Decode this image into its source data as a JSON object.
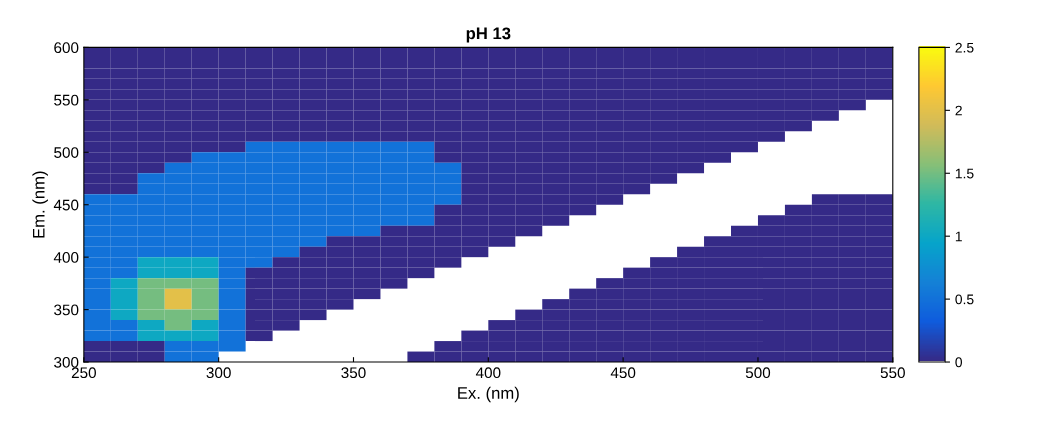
{
  "chart_data": {
    "type": "heatmap",
    "title": "pH 13",
    "xlabel": "Ex. (nm)",
    "ylabel": "Em. (nm)",
    "x": [
      255,
      265,
      275,
      285,
      295,
      305,
      315,
      325,
      335,
      345,
      355,
      365,
      375,
      385,
      395,
      405,
      415,
      425,
      435,
      445,
      455,
      465,
      475,
      485,
      495,
      505,
      515,
      525,
      535,
      545
    ],
    "y": [
      595,
      585,
      575,
      565,
      555,
      545,
      535,
      525,
      515,
      505,
      495,
      485,
      475,
      465,
      455,
      445,
      435,
      425,
      415,
      405,
      395,
      385,
      375,
      365,
      355,
      345,
      335,
      325,
      315,
      305
    ],
    "xlim": [
      250,
      550
    ],
    "xticks": [
      250,
      300,
      350,
      400,
      450,
      500,
      550
    ],
    "ylim": [
      300,
      600
    ],
    "yticks": [
      300,
      350,
      400,
      450,
      500,
      550,
      600
    ],
    "clim": [
      0,
      2.5
    ],
    "cticks": [
      0,
      0.5,
      1,
      1.5,
      2,
      2.5
    ],
    "grid": false,
    "cells": [
      [
        0,
        0,
        0,
        0,
        0,
        0,
        0,
        0,
        0,
        0,
        0,
        0,
        0,
        0,
        0,
        0,
        0,
        0,
        0,
        0,
        0,
        0,
        0,
        0,
        0,
        0,
        0,
        0,
        0,
        0
      ],
      [
        0,
        0,
        0,
        0,
        0,
        0,
        0,
        0,
        0,
        0,
        0,
        0,
        0,
        0,
        0,
        0,
        0,
        0,
        0,
        0,
        0,
        0,
        0,
        0,
        0,
        0,
        0,
        0,
        0,
        0
      ],
      [
        0,
        0,
        0,
        0,
        0,
        0,
        0,
        0,
        0,
        0,
        0,
        0,
        0,
        0,
        0,
        0,
        0,
        0,
        0,
        0,
        0,
        0,
        0,
        0,
        0,
        0,
        0,
        0,
        0,
        0
      ],
      [
        0,
        0,
        0,
        0,
        0,
        0,
        0,
        0,
        0,
        0,
        0,
        0,
        0,
        0,
        0,
        0,
        0,
        0,
        0,
        0,
        0,
        0,
        0,
        0,
        0,
        0,
        0,
        0,
        0,
        0
      ],
      [
        0,
        0,
        0,
        0,
        0,
        0,
        0,
        0,
        0,
        0,
        0,
        0,
        0,
        0,
        0,
        0,
        0,
        0,
        0,
        0,
        0,
        0,
        0,
        0,
        0,
        0,
        0,
        0,
        0,
        0
      ],
      [
        0,
        0,
        0,
        0,
        0,
        0,
        0,
        0,
        0,
        0,
        0,
        0,
        0,
        0,
        0,
        0,
        0,
        0,
        0,
        0,
        0,
        0,
        0,
        0,
        0,
        0,
        0,
        0,
        0,
        null
      ],
      [
        0,
        0,
        0,
        0,
        0,
        0,
        0,
        0,
        0,
        0,
        0,
        0,
        0,
        0,
        0,
        0,
        0,
        0,
        0,
        0,
        0,
        0,
        0,
        0,
        0,
        0,
        0,
        0,
        null,
        null
      ],
      [
        0,
        0,
        0,
        0,
        0,
        0,
        0,
        0,
        0,
        0,
        0,
        0,
        0,
        0,
        0,
        0,
        0,
        0,
        0,
        0,
        0,
        0,
        0,
        0,
        0,
        0,
        0,
        null,
        null,
        null
      ],
      [
        0,
        0,
        0,
        0,
        0,
        0,
        0,
        0,
        0,
        0,
        0,
        0,
        0,
        0,
        0,
        0,
        0,
        0,
        0,
        0,
        0,
        0,
        0,
        0,
        0,
        0,
        null,
        null,
        null,
        null
      ],
      [
        0,
        0,
        0,
        0,
        0,
        0,
        0.5,
        0.5,
        0.5,
        0.5,
        0.5,
        0.5,
        0.5,
        0,
        0,
        0,
        0,
        0,
        0,
        0,
        0,
        0,
        0,
        0,
        0,
        null,
        null,
        null,
        null,
        null
      ],
      [
        0,
        0,
        0,
        0,
        0.5,
        0.5,
        0.5,
        0.5,
        0.5,
        0.5,
        0.5,
        0.5,
        0.5,
        0,
        0,
        0,
        0,
        0,
        0,
        0,
        0,
        0,
        0,
        0,
        null,
        null,
        null,
        null,
        null,
        null
      ],
      [
        0,
        0,
        0,
        0.5,
        0.5,
        0.5,
        0.5,
        0.5,
        0.5,
        0.5,
        0.5,
        0.5,
        0.5,
        0.5,
        0,
        0,
        0,
        0,
        0,
        0,
        0,
        0,
        0,
        null,
        null,
        null,
        null,
        null,
        null,
        null
      ],
      [
        0,
        0,
        0.5,
        0.5,
        0.5,
        0.5,
        0.5,
        0.5,
        0.5,
        0.5,
        0.5,
        0.5,
        0.5,
        0.5,
        0,
        0,
        0,
        0,
        0,
        0,
        0,
        0,
        null,
        null,
        null,
        null,
        null,
        null,
        null,
        null
      ],
      [
        0,
        0,
        0.5,
        0.5,
        0.5,
        0.5,
        0.5,
        0.5,
        0.5,
        0.5,
        0.5,
        0.5,
        0.5,
        0.5,
        0,
        0,
        0,
        0,
        0,
        0,
        0,
        null,
        null,
        null,
        null,
        null,
        null,
        null,
        null,
        null
      ],
      [
        0.5,
        0.5,
        0.5,
        0.5,
        0.5,
        0.5,
        0.5,
        0.5,
        0.5,
        0.5,
        0.5,
        0.5,
        0.5,
        0.5,
        0,
        0,
        0,
        0,
        0,
        0,
        null,
        null,
        null,
        null,
        null,
        null,
        null,
        0,
        0,
        0
      ],
      [
        0.5,
        0.5,
        0.5,
        0.5,
        0.5,
        0.5,
        0.5,
        0.5,
        0.5,
        0.5,
        0.5,
        0.5,
        0.5,
        0,
        0,
        0,
        0,
        0,
        0,
        null,
        null,
        null,
        null,
        null,
        null,
        null,
        0,
        0,
        0,
        0
      ],
      [
        0.5,
        0.5,
        0.5,
        0.5,
        0.5,
        0.5,
        0.5,
        0.5,
        0.5,
        0.5,
        0.5,
        0.5,
        0.5,
        0,
        0,
        0,
        0,
        0,
        null,
        null,
        null,
        null,
        null,
        null,
        null,
        0,
        0,
        0,
        0,
        0
      ],
      [
        0.5,
        0.5,
        0.5,
        0.5,
        0.5,
        0.5,
        0.5,
        0.5,
        0.5,
        0.5,
        0.5,
        0,
        0,
        0,
        0,
        0,
        0,
        null,
        null,
        null,
        null,
        null,
        null,
        null,
        0,
        0,
        0,
        0,
        0,
        0
      ],
      [
        0.5,
        0.5,
        0.5,
        0.5,
        0.5,
        0.5,
        0.5,
        0.5,
        0.5,
        0,
        0,
        0,
        0,
        0,
        0,
        0,
        null,
        null,
        null,
        null,
        null,
        null,
        null,
        0,
        0,
        0,
        0,
        0,
        0,
        0
      ],
      [
        0.5,
        0.5,
        0.5,
        0.5,
        0.5,
        0.5,
        0.5,
        0.5,
        0,
        0,
        0,
        0,
        0,
        0,
        0,
        null,
        null,
        null,
        null,
        null,
        null,
        null,
        0,
        0,
        0,
        0,
        0,
        0,
        0,
        0
      ],
      [
        0.5,
        0.5,
        1,
        1,
        1,
        0.5,
        0.5,
        0,
        0,
        0,
        0,
        0,
        0,
        0,
        null,
        null,
        null,
        null,
        null,
        null,
        null,
        0,
        0,
        0,
        0,
        0,
        0,
        0,
        0,
        0
      ],
      [
        0.5,
        0.5,
        1,
        1,
        1,
        0.5,
        0,
        0,
        0,
        0,
        0,
        0,
        0,
        null,
        null,
        null,
        null,
        null,
        null,
        null,
        0,
        0,
        0,
        0,
        0,
        0,
        0,
        0,
        0,
        0
      ],
      [
        0.5,
        1,
        1.5,
        1.5,
        1.5,
        0.5,
        0,
        0,
        0,
        0,
        0,
        0,
        null,
        null,
        null,
        null,
        null,
        null,
        null,
        0,
        0,
        0,
        0,
        0,
        0,
        0,
        0,
        0,
        0,
        0
      ],
      [
        0.5,
        1,
        1.5,
        2,
        1.5,
        0.5,
        0,
        0,
        0,
        0,
        0,
        null,
        null,
        null,
        null,
        null,
        null,
        null,
        0,
        0,
        0,
        0,
        0,
        0,
        0,
        0,
        0,
        0,
        0,
        0
      ],
      [
        0.5,
        1,
        1.5,
        2,
        1.5,
        0.5,
        0,
        0,
        0,
        0,
        null,
        null,
        null,
        null,
        null,
        null,
        null,
        0,
        0,
        0,
        0,
        0,
        0,
        0,
        0,
        0,
        0,
        0,
        0,
        0
      ],
      [
        0.5,
        1,
        1.5,
        1.5,
        1.5,
        0.5,
        0,
        0,
        0,
        null,
        null,
        null,
        null,
        null,
        null,
        null,
        0,
        0,
        0,
        0,
        0,
        0,
        0,
        0,
        0,
        0,
        0,
        0,
        0,
        0
      ],
      [
        0.5,
        0.5,
        1,
        1.5,
        1,
        0.5,
        0,
        0,
        null,
        null,
        null,
        null,
        null,
        null,
        null,
        0,
        0,
        0,
        0,
        0,
        0,
        0,
        0,
        0,
        0,
        0,
        0,
        0,
        0,
        0
      ],
      [
        0.5,
        0.5,
        1,
        1,
        1,
        0.5,
        0,
        null,
        null,
        null,
        null,
        null,
        null,
        null,
        0,
        0,
        0,
        0,
        0,
        0,
        0,
        0,
        0,
        0,
        0,
        0,
        0,
        0,
        0,
        0
      ],
      [
        0,
        0,
        0,
        0.5,
        0.5,
        0.5,
        null,
        null,
        null,
        null,
        null,
        null,
        null,
        0,
        0,
        0,
        0,
        0,
        0,
        0,
        0,
        0,
        0,
        0,
        0,
        0,
        0,
        0,
        0,
        0
      ],
      [
        0,
        0,
        0,
        0.5,
        0.5,
        null,
        null,
        null,
        null,
        null,
        null,
        null,
        0,
        0,
        0,
        0,
        0,
        0,
        0,
        0,
        0,
        0,
        0,
        0,
        0,
        0,
        0,
        0,
        0,
        0
      ]
    ]
  }
}
